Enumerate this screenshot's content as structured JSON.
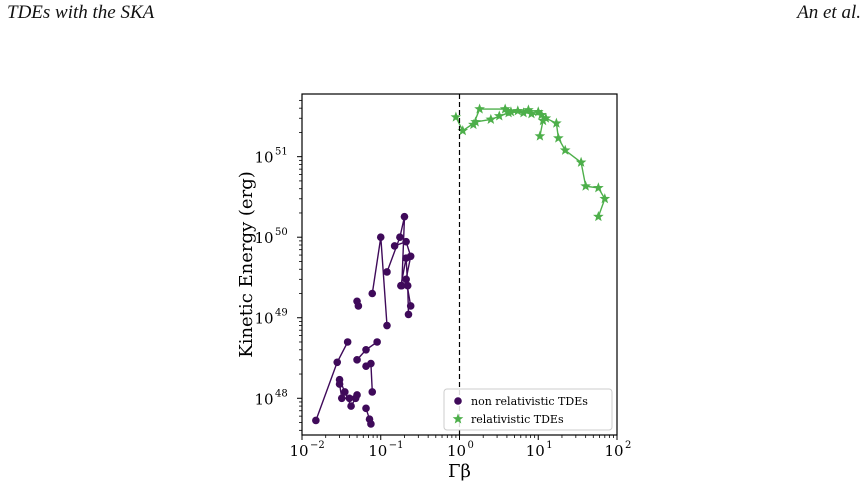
{
  "header": {
    "left": "TDEs with the SKA",
    "right": "An et al."
  },
  "colors": {
    "non_relativistic": "#3f0a5a",
    "relativistic": "#4daf4a"
  },
  "chart_data": {
    "type": "scatter",
    "title": "",
    "xlabel": "Γβ",
    "ylabel": "Kinetic Energy (erg)",
    "xscale": "log",
    "yscale": "log",
    "xlim": [
      0.01,
      100
    ],
    "ylim": [
      3.5e+47,
      6e+51
    ],
    "x_ticks": [
      {
        "value": 0.01,
        "base": "10",
        "exp": "−2"
      },
      {
        "value": 0.1,
        "base": "10",
        "exp": "−1"
      },
      {
        "value": 1,
        "base": "10",
        "exp": "0"
      },
      {
        "value": 10,
        "base": "10",
        "exp": "1"
      },
      {
        "value": 100,
        "base": "10",
        "exp": "2"
      }
    ],
    "y_ticks": [
      {
        "value": 1e+48,
        "base": "10",
        "exp": "48"
      },
      {
        "value": 1e+49,
        "base": "10",
        "exp": "49"
      },
      {
        "value": 1e+50,
        "base": "10",
        "exp": "50"
      },
      {
        "value": 1e+51,
        "base": "10",
        "exp": "51"
      }
    ],
    "vline": {
      "x": 1,
      "style": "dashed"
    },
    "legend": {
      "position": "lower-right",
      "entries": [
        {
          "label": "non relativistic TDEs",
          "marker": "circle"
        },
        {
          "label": "relativistic TDEs",
          "marker": "star"
        }
      ]
    },
    "series": [
      {
        "name": "non relativistic TDEs",
        "marker": "circle",
        "tracks": [
          [
            [
              0.015,
              5.3e+47
            ],
            [
              0.028,
              2.8e+48
            ],
            [
              0.038,
              5e+48
            ]
          ],
          [
            [
              0.03,
              1.5e+48
            ],
            [
              0.032,
              1e+48
            ],
            [
              0.04,
              1e+48
            ],
            [
              0.05,
              1.1e+48
            ]
          ],
          [
            [
              0.03,
              1.7e+48
            ],
            [
              0.035,
              1.2e+48
            ],
            [
              0.042,
              8e+47
            ],
            [
              0.048,
              1e+48
            ]
          ],
          [
            [
              0.05,
              3e+48
            ],
            [
              0.065,
              4e+48
            ],
            [
              0.09,
              5e+48
            ]
          ],
          [
            [
              0.065,
              2.5e+48
            ],
            [
              0.075,
              2.7e+48
            ],
            [
              0.078,
              1.2e+48
            ]
          ],
          [
            [
              0.065,
              7.5e+47
            ],
            [
              0.072,
              5.5e+47
            ],
            [
              0.075,
              4.8e+47
            ]
          ],
          [
            [
              0.05,
              1.6e+49
            ],
            [
              0.052,
              1.4e+49
            ]
          ],
          [
            [
              0.078,
              2e+49
            ],
            [
              0.1,
              1e+50
            ],
            [
              0.12,
              8e+48
            ]
          ],
          [
            [
              0.12,
              3.7e+49
            ],
            [
              0.175,
              1e+50
            ],
            [
              0.2,
              1.8e+50
            ],
            [
              0.185,
              2.5e+49
            ]
          ],
          [
            [
              0.15,
              7.8e+49
            ],
            [
              0.21,
              8.8e+49
            ],
            [
              0.24,
              5.8e+49
            ],
            [
              0.21,
              3e+49
            ],
            [
              0.24,
              1.4e+49
            ]
          ],
          [
            [
              0.18,
              2.5e+49
            ],
            [
              0.21,
              5.5e+49
            ],
            [
              0.22,
              2.5e+49
            ],
            [
              0.225,
              1.1e+49
            ]
          ]
        ]
      },
      {
        "name": "relativistic TDEs",
        "marker": "star",
        "tracks": [
          [
            [
              0.9,
              3.1e+51
            ],
            [
              1.1,
              2.1e+51
            ],
            [
              1.6,
              2.7e+51
            ],
            [
              2.5,
              2.9e+51
            ],
            [
              4.2,
              3.5e+51
            ],
            [
              7.5,
              3.8e+51
            ],
            [
              10,
              3.6e+51
            ],
            [
              12.5,
              3e+51
            ],
            [
              17,
              2.6e+51
            ],
            [
              18,
              1.7e+51
            ],
            [
              22,
              1.2e+51
            ],
            [
              35,
              8.5e+50
            ],
            [
              40,
              4.3e+50
            ],
            [
              58,
              4.1e+50
            ],
            [
              70,
              3e+50
            ],
            [
              58,
              1.8e+50
            ]
          ],
          [
            [
              1.5,
              2.5e+51
            ],
            [
              1.8,
              3.9e+51
            ],
            [
              3.8,
              3.9e+51
            ],
            [
              5.5,
              3.7e+51
            ],
            [
              8.2,
              3.4e+51
            ],
            [
              11,
              3.3e+51
            ],
            [
              11.5,
              2.8e+51
            ],
            [
              10.5,
              1.8e+51
            ]
          ],
          [
            [
              3.2,
              3.2e+51
            ],
            [
              4.5,
              3.6e+51
            ],
            [
              6.5,
              3.5e+51
            ]
          ]
        ]
      }
    ]
  }
}
